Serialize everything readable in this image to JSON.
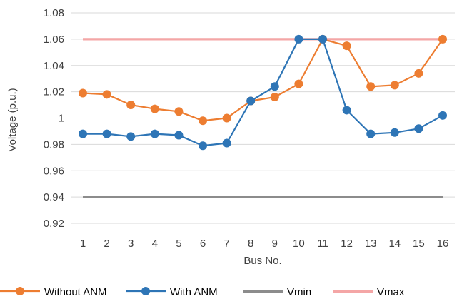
{
  "chart_data": {
    "type": "line",
    "xlabel": "Bus No.",
    "ylabel": "Voltage (p.u.)",
    "ylim": [
      0.92,
      1.08
    ],
    "yticks": [
      "0.92",
      "0.94",
      "0.96",
      "0.98",
      "1",
      "1.02",
      "1.04",
      "1.06",
      "1.08"
    ],
    "categories": [
      "1",
      "2",
      "3",
      "4",
      "5",
      "6",
      "7",
      "8",
      "9",
      "10",
      "11",
      "12",
      "13",
      "14",
      "15",
      "16"
    ],
    "grid": "horizontal",
    "legend_position": "bottom",
    "series": [
      {
        "name": "Without ANM",
        "color": "#ED7D31",
        "marker": true,
        "values": [
          1.019,
          1.018,
          1.01,
          1.007,
          1.005,
          0.998,
          1.0,
          1.013,
          1.016,
          1.026,
          1.06,
          1.055,
          1.024,
          1.025,
          1.034,
          1.06
        ]
      },
      {
        "name": "With ANM",
        "color": "#2E75B6",
        "marker": true,
        "values": [
          0.988,
          0.988,
          0.986,
          0.988,
          0.987,
          0.979,
          0.981,
          1.013,
          1.024,
          1.06,
          1.06,
          1.006,
          0.988,
          0.989,
          0.992,
          1.002
        ]
      },
      {
        "name": "Vmin",
        "color": "#8C8C8C",
        "marker": false,
        "values": [
          0.94,
          0.94,
          0.94,
          0.94,
          0.94,
          0.94,
          0.94,
          0.94,
          0.94,
          0.94,
          0.94,
          0.94,
          0.94,
          0.94,
          0.94,
          0.94
        ]
      },
      {
        "name": "Vmax",
        "color": "#F4A6A6",
        "marker": false,
        "values": [
          1.06,
          1.06,
          1.06,
          1.06,
          1.06,
          1.06,
          1.06,
          1.06,
          1.06,
          1.06,
          1.06,
          1.06,
          1.06,
          1.06,
          1.06,
          1.06
        ]
      }
    ]
  }
}
